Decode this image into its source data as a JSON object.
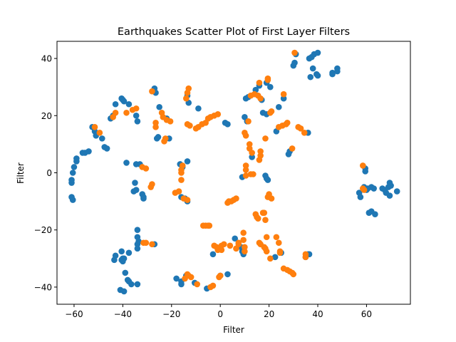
{
  "chart_data": {
    "type": "scatter",
    "title": "Earthquakes Scatter Plot of First Layer Filters",
    "xlabel": "Filter",
    "ylabel": "Filter",
    "xlim": [
      -67,
      78
    ],
    "ylim": [
      -46,
      46
    ],
    "xticks": [
      -60,
      -40,
      -20,
      0,
      20,
      40,
      60
    ],
    "yticks": [
      -40,
      -20,
      0,
      20,
      40
    ],
    "grid": false,
    "series": [
      {
        "color": "#1f77b4",
        "points": [
          [
            -61,
            -3.5
          ],
          [
            -61,
            -2.5
          ],
          [
            -60.5,
            0
          ],
          [
            -60,
            2
          ],
          [
            -59,
            4
          ],
          [
            -59,
            5
          ],
          [
            -61,
            -8.5
          ],
          [
            -60.5,
            -9.5
          ],
          [
            -56.5,
            7
          ],
          [
            -55.5,
            7
          ],
          [
            -54,
            7.5
          ],
          [
            -52.5,
            16
          ],
          [
            -51.5,
            14.5
          ],
          [
            -51,
            13
          ],
          [
            -48.5,
            12
          ],
          [
            -47.5,
            9
          ],
          [
            -46.5,
            8.5
          ],
          [
            -45,
            19
          ],
          [
            -44,
            20
          ],
          [
            -43,
            24
          ],
          [
            -40.5,
            26
          ],
          [
            -40,
            25.5
          ],
          [
            -39.5,
            25
          ],
          [
            -37.5,
            24
          ],
          [
            -34.5,
            20
          ],
          [
            -34,
            18
          ],
          [
            -38.5,
            3.5
          ],
          [
            -34.5,
            3
          ],
          [
            -33,
            3
          ],
          [
            -35,
            -3.5
          ],
          [
            -34.5,
            -6
          ],
          [
            -35.5,
            -6.5
          ],
          [
            -32,
            -7.5
          ],
          [
            -31.5,
            -8.5
          ],
          [
            -31.5,
            -9
          ],
          [
            -34,
            -20
          ],
          [
            -34,
            -22.5
          ],
          [
            -33.5,
            -24
          ],
          [
            -34,
            -25
          ],
          [
            -34,
            -26.5
          ],
          [
            -27,
            -25
          ],
          [
            -43.5,
            -30.5
          ],
          [
            -43,
            -29
          ],
          [
            -40.5,
            -27.5
          ],
          [
            -40,
            -30
          ],
          [
            -39.5,
            -30
          ],
          [
            -40.5,
            -30.5
          ],
          [
            -40,
            -31
          ],
          [
            -37.5,
            -28
          ],
          [
            -39,
            -35
          ],
          [
            -38,
            -37.5
          ],
          [
            -37.5,
            -38
          ],
          [
            -36.5,
            -39
          ],
          [
            -34,
            -39
          ],
          [
            -41,
            -41
          ],
          [
            -39.5,
            -41.5
          ],
          [
            -27,
            29.5
          ],
          [
            -26.5,
            28
          ],
          [
            -25,
            23
          ],
          [
            -26,
            12
          ],
          [
            -25.5,
            12.5
          ],
          [
            -21,
            12
          ],
          [
            -22,
            19
          ],
          [
            -13.5,
            27
          ],
          [
            -13,
            24.5
          ],
          [
            -9,
            22.5
          ],
          [
            -16.5,
            3
          ],
          [
            -13.5,
            4
          ],
          [
            -15.5,
            2
          ],
          [
            -16,
            -8.5
          ],
          [
            -14.5,
            -9
          ],
          [
            -13.5,
            -10
          ],
          [
            -18,
            -37
          ],
          [
            -16,
            -38
          ],
          [
            -16,
            -39
          ],
          [
            -14,
            -36
          ],
          [
            -10.5,
            -38.5
          ],
          [
            -5.5,
            -40.5
          ],
          [
            -3,
            -28.5
          ],
          [
            0,
            -36
          ],
          [
            3,
            -35.5
          ],
          [
            2,
            17.5
          ],
          [
            3,
            17
          ],
          [
            6,
            -23
          ],
          [
            7.5,
            -24.5
          ],
          [
            8.5,
            -26
          ],
          [
            9,
            -27.5
          ],
          [
            9.5,
            -28.5
          ],
          [
            9,
            -1.5
          ],
          [
            10,
            19.5
          ],
          [
            11,
            18
          ],
          [
            10.5,
            26
          ],
          [
            11.5,
            26.5
          ],
          [
            13,
            5.5
          ],
          [
            14.5,
            29
          ],
          [
            16,
            30.5
          ],
          [
            17,
            25.5
          ],
          [
            17.5,
            21
          ],
          [
            19,
            20.5
          ],
          [
            19,
            31.5
          ],
          [
            20.5,
            30
          ],
          [
            24,
            23
          ],
          [
            18.5,
            -1
          ],
          [
            19,
            -2
          ],
          [
            19.5,
            -2.5
          ],
          [
            22.5,
            -29.5
          ],
          [
            25,
            -28
          ],
          [
            23,
            14.5
          ],
          [
            26,
            26
          ],
          [
            28,
            6.5
          ],
          [
            28.5,
            7.5
          ],
          [
            30,
            37.5
          ],
          [
            30.5,
            38.5
          ],
          [
            31,
            41.5
          ],
          [
            36,
            14
          ],
          [
            37,
            33.5
          ],
          [
            38,
            36.5
          ],
          [
            36.5,
            40
          ],
          [
            37.5,
            40.5
          ],
          [
            38.5,
            41.5
          ],
          [
            40,
            42
          ],
          [
            39.5,
            34.5
          ],
          [
            40,
            34
          ],
          [
            46,
            34.5
          ],
          [
            46,
            35
          ],
          [
            48,
            36.5
          ],
          [
            48,
            35.5
          ],
          [
            36,
            -28.5
          ],
          [
            36.5,
            -28.5
          ],
          [
            35,
            -29.5
          ],
          [
            57,
            -7
          ],
          [
            57.5,
            -8.5
          ],
          [
            59,
            -5
          ],
          [
            59.5,
            0.5
          ],
          [
            59.5,
            1.5
          ],
          [
            60.5,
            -5.5
          ],
          [
            62,
            -5
          ],
          [
            61,
            -14
          ],
          [
            62,
            -13.5
          ],
          [
            63.5,
            -14.5
          ],
          [
            63,
            -5.5
          ],
          [
            66.5,
            -5.5
          ],
          [
            67.5,
            -6
          ],
          [
            68,
            -7
          ],
          [
            69,
            -5
          ],
          [
            70,
            -4.5
          ],
          [
            69.5,
            -8
          ],
          [
            69.5,
            -3.5
          ],
          [
            72.5,
            -6.5
          ],
          [
            60,
            -6
          ]
        ]
      },
      {
        "color": "#ff7f0e",
        "points": [
          [
            -51.5,
            16
          ],
          [
            -49.5,
            14
          ],
          [
            -44,
            19.5
          ],
          [
            -43,
            21
          ],
          [
            -38.5,
            21
          ],
          [
            -36,
            22
          ],
          [
            -34.5,
            22.5
          ],
          [
            -32,
            2
          ],
          [
            -30.5,
            1.5
          ],
          [
            -28.5,
            -5
          ],
          [
            -28,
            -4
          ],
          [
            -31.5,
            -24.5
          ],
          [
            -30.5,
            -24.5
          ],
          [
            -28,
            -25
          ],
          [
            -28,
            28.5
          ],
          [
            -26.5,
            17.5
          ],
          [
            -26.5,
            16
          ],
          [
            -24,
            21
          ],
          [
            -23.5,
            19.5
          ],
          [
            -23,
            11
          ],
          [
            -22.5,
            12
          ],
          [
            -22,
            18.5
          ],
          [
            -20.5,
            18
          ],
          [
            -18.5,
            -7
          ],
          [
            -17,
            -6.5
          ],
          [
            -16,
            -2.5
          ],
          [
            -16,
            0
          ],
          [
            -16,
            1
          ],
          [
            -15.5,
            2.5
          ],
          [
            -15,
            -9
          ],
          [
            -13.5,
            -9.5
          ],
          [
            -14,
            26
          ],
          [
            -13.5,
            28
          ],
          [
            -13,
            29.5
          ],
          [
            -13.5,
            17
          ],
          [
            -12.5,
            16.5
          ],
          [
            -10,
            15.5
          ],
          [
            -9,
            16
          ],
          [
            -7.5,
            17
          ],
          [
            -6,
            17.5
          ],
          [
            -5,
            19
          ],
          [
            -4,
            19.5
          ],
          [
            -2.5,
            20
          ],
          [
            -1,
            20.5
          ],
          [
            -14.5,
            -37
          ],
          [
            -13.5,
            -35.5
          ],
          [
            -13,
            -36
          ],
          [
            -12,
            -36.5
          ],
          [
            -9.5,
            -39
          ],
          [
            -7,
            -18.5
          ],
          [
            -6,
            -18.5
          ],
          [
            -5,
            -18.5
          ],
          [
            -4.5,
            -18.5
          ],
          [
            -4,
            -40
          ],
          [
            -3,
            -39.5
          ],
          [
            -2.5,
            -25.5
          ],
          [
            -1.5,
            -26
          ],
          [
            -1,
            -27
          ],
          [
            0.5,
            -25.5
          ],
          [
            0.5,
            -27
          ],
          [
            1.5,
            -25
          ],
          [
            0,
            -36
          ],
          [
            -0.5,
            -36.5
          ],
          [
            3,
            -10.5
          ],
          [
            3.5,
            -10
          ],
          [
            4.5,
            -10
          ],
          [
            5.5,
            -9.5
          ],
          [
            6.5,
            -9
          ],
          [
            4,
            -25.5
          ],
          [
            6.5,
            -26.5
          ],
          [
            7.5,
            -25
          ],
          [
            7.5,
            -24.5
          ],
          [
            9.5,
            -21
          ],
          [
            9.5,
            -23.5
          ],
          [
            10,
            -26
          ],
          [
            10,
            -27.5
          ],
          [
            10,
            14
          ],
          [
            10.5,
            13
          ],
          [
            11.5,
            18
          ],
          [
            10.5,
            1
          ],
          [
            10.5,
            2.5
          ],
          [
            10.5,
            -1
          ],
          [
            12,
            8.5
          ],
          [
            12,
            10
          ],
          [
            13,
            7
          ],
          [
            12.5,
            -0.5
          ],
          [
            13.5,
            -0.5
          ],
          [
            12.5,
            27
          ],
          [
            14,
            27.5
          ],
          [
            15.5,
            27
          ],
          [
            16,
            31.5
          ],
          [
            16.5,
            26
          ],
          [
            16,
            4.5
          ],
          [
            16.5,
            6
          ],
          [
            16.5,
            7.5
          ],
          [
            14.5,
            -14.5
          ],
          [
            15,
            -15.5
          ],
          [
            15.5,
            -16
          ],
          [
            16,
            -24.5
          ],
          [
            16.5,
            -25
          ],
          [
            17.5,
            -14
          ],
          [
            18,
            -14
          ],
          [
            18.5,
            -16.5
          ],
          [
            18,
            -26
          ],
          [
            18.5,
            -26.5
          ],
          [
            19,
            -27.5
          ],
          [
            19,
            -22.5
          ],
          [
            19.5,
            -8.5
          ],
          [
            20,
            -7.5
          ],
          [
            21,
            -9
          ],
          [
            19.5,
            32.5
          ],
          [
            19.5,
            33
          ],
          [
            20.5,
            21
          ],
          [
            21,
            21.5
          ],
          [
            18.5,
            12
          ],
          [
            20.5,
            -30
          ],
          [
            23,
            -22.5
          ],
          [
            24,
            -24.5
          ],
          [
            24.5,
            -27.5
          ],
          [
            24.5,
            -28
          ],
          [
            24,
            16
          ],
          [
            25.5,
            16.5
          ],
          [
            26,
            27.5
          ],
          [
            27,
            17
          ],
          [
            27.5,
            17.5
          ],
          [
            26,
            -33.5
          ],
          [
            27.5,
            -34
          ],
          [
            28.5,
            -34.5
          ],
          [
            29.5,
            -35
          ],
          [
            30,
            -35.5
          ],
          [
            29.5,
            8.5
          ],
          [
            30.5,
            42
          ],
          [
            32,
            16
          ],
          [
            33,
            15.5
          ],
          [
            34.5,
            14
          ],
          [
            35,
            -28.5
          ],
          [
            35,
            -29.5
          ],
          [
            58.5,
            2.5
          ],
          [
            58.5,
            -5.5
          ],
          [
            59,
            -6
          ]
        ]
      }
    ]
  }
}
